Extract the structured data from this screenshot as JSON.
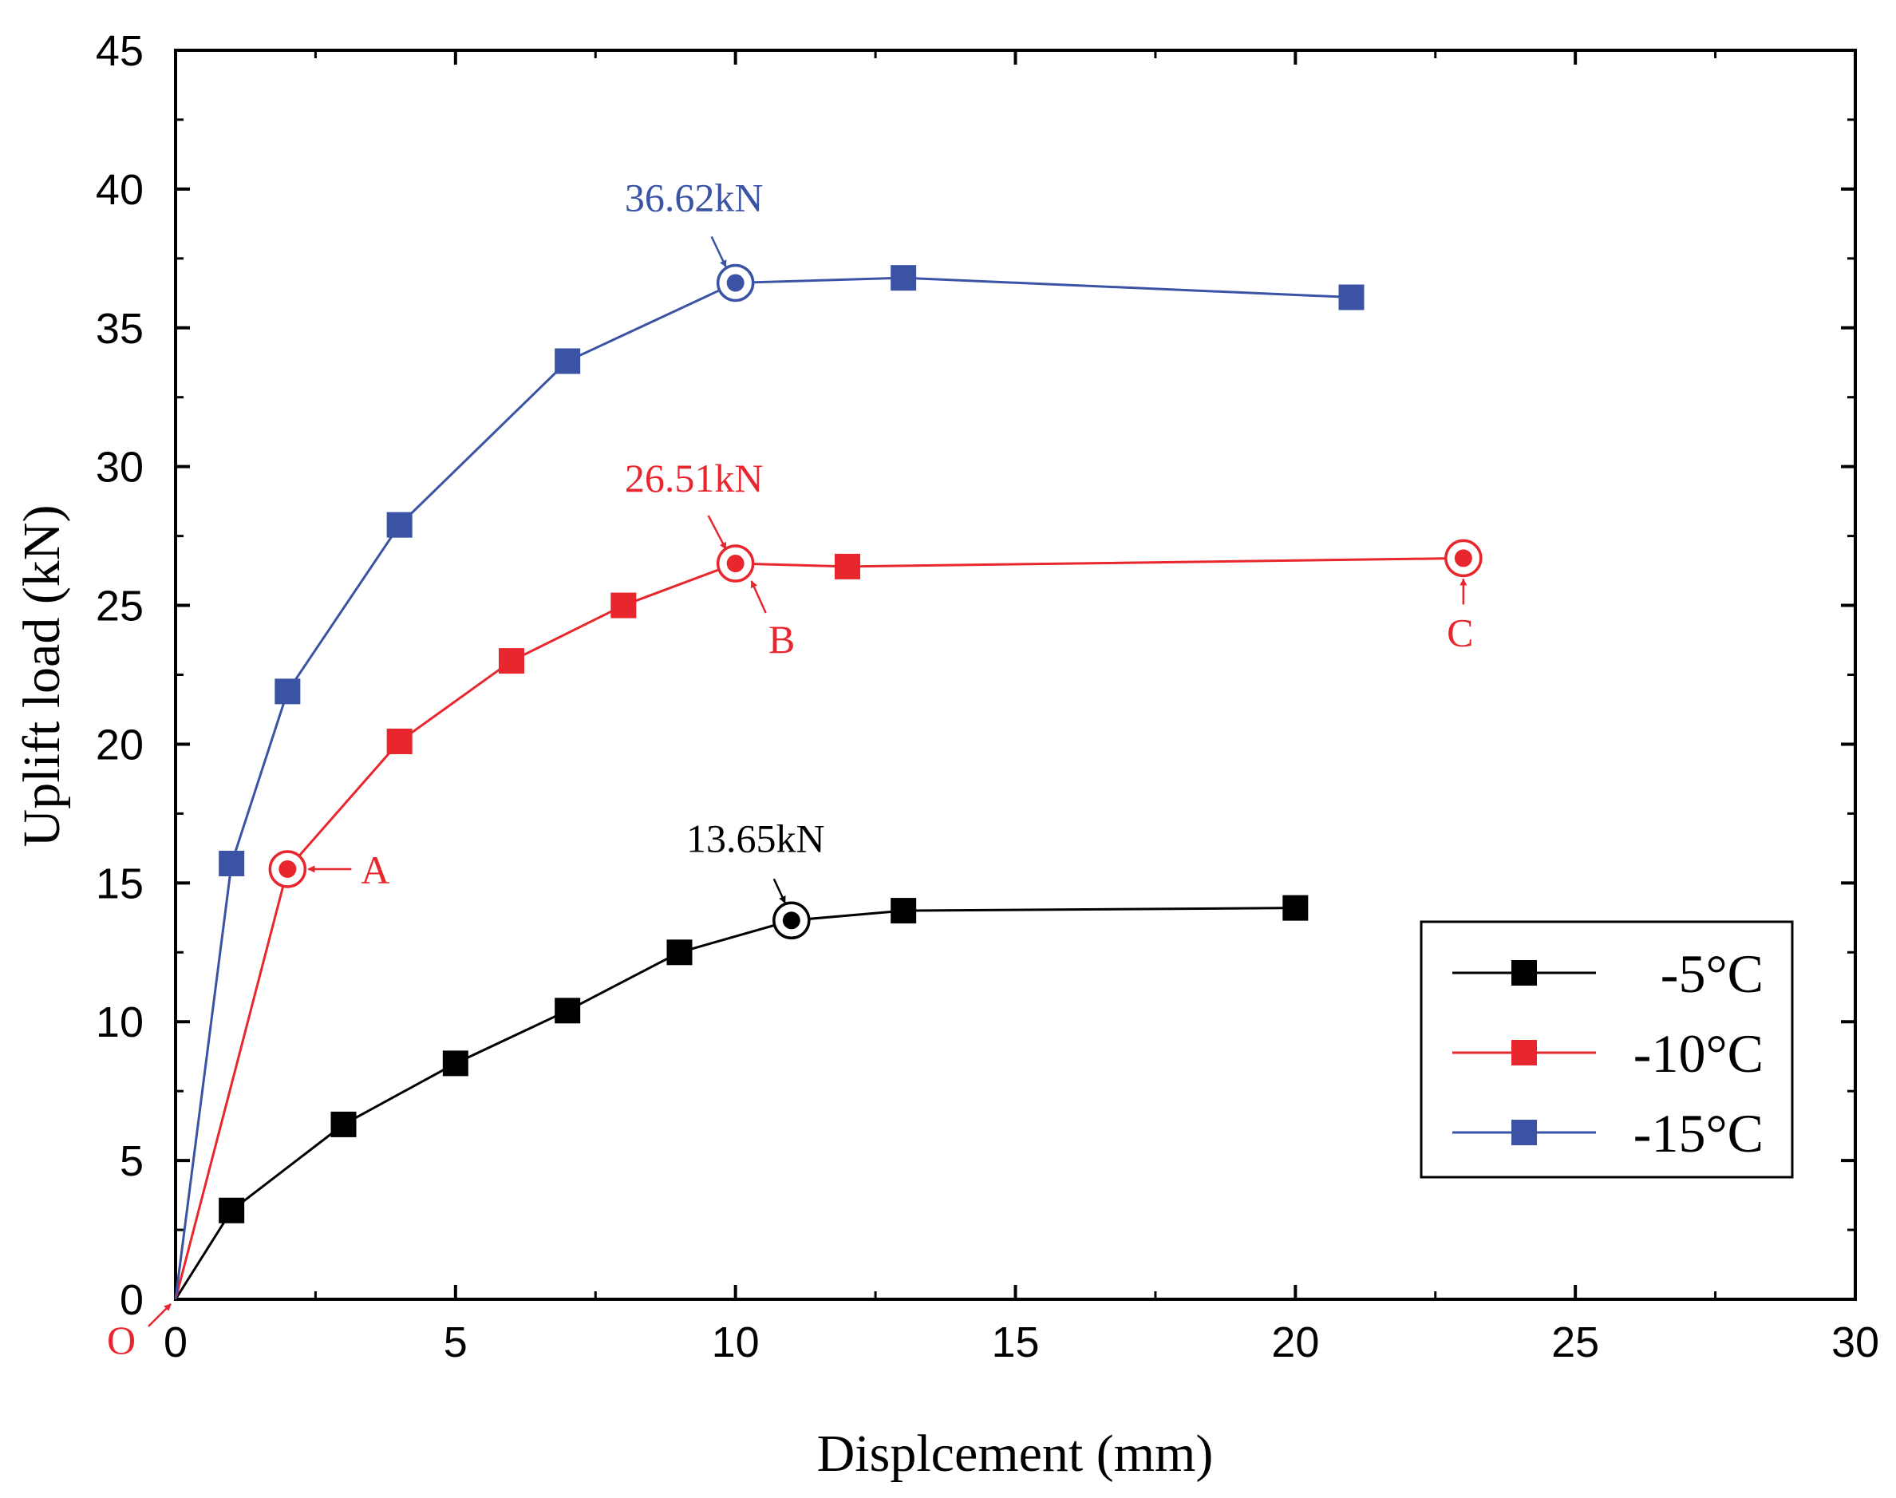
{
  "chart_data": {
    "type": "line",
    "title": "",
    "xlabel": "Displcement (mm)",
    "ylabel": "Uplift load (kN)",
    "xlim": [
      0,
      30
    ],
    "ylim": [
      0,
      45
    ],
    "xticks": [
      0,
      5,
      10,
      15,
      20,
      25,
      30
    ],
    "yticks": [
      0,
      5,
      10,
      15,
      20,
      25,
      30,
      35,
      40,
      45
    ],
    "grid": false,
    "legend_position": "bottom-right",
    "series": [
      {
        "name": "-5°C",
        "color": "#000000",
        "x": [
          0,
          1,
          3,
          5,
          7,
          9,
          11,
          13,
          20
        ],
        "y": [
          0,
          3.2,
          6.3,
          8.5,
          10.4,
          12.5,
          13.65,
          14.0,
          14.1
        ],
        "peak_index": 6
      },
      {
        "name": "-10°C",
        "color": "#e8262d",
        "x": [
          0,
          2,
          4,
          6,
          8,
          10,
          12,
          23
        ],
        "y": [
          0,
          15.5,
          20.1,
          23.0,
          25.0,
          26.51,
          26.4,
          26.7
        ],
        "circled_indices": [
          1,
          5,
          7
        ]
      },
      {
        "name": "-15°C",
        "color": "#3a53a4",
        "x": [
          0,
          1,
          2,
          4,
          7,
          10,
          13,
          21
        ],
        "y": [
          0,
          15.7,
          21.9,
          27.9,
          33.8,
          36.62,
          36.8,
          36.1
        ],
        "peak_index": 5
      }
    ],
    "annotations": [
      {
        "text": "36.62kN",
        "x": 10,
        "y": 36.62,
        "color": "#3a53a4"
      },
      {
        "text": "26.51kN",
        "x": 10,
        "y": 26.51,
        "color": "#e8262d"
      },
      {
        "text": "13.65kN",
        "x": 11,
        "y": 13.65,
        "color": "#000000"
      },
      {
        "text": "A",
        "x": 2,
        "y": 15.5,
        "color": "#e8262d"
      },
      {
        "text": "B",
        "x": 10,
        "y": 26.51,
        "color": "#e8262d"
      },
      {
        "text": "C",
        "x": 23,
        "y": 26.7,
        "color": "#e8262d"
      },
      {
        "text": "O",
        "x": 0,
        "y": 0,
        "color": "#e8262d"
      }
    ]
  }
}
